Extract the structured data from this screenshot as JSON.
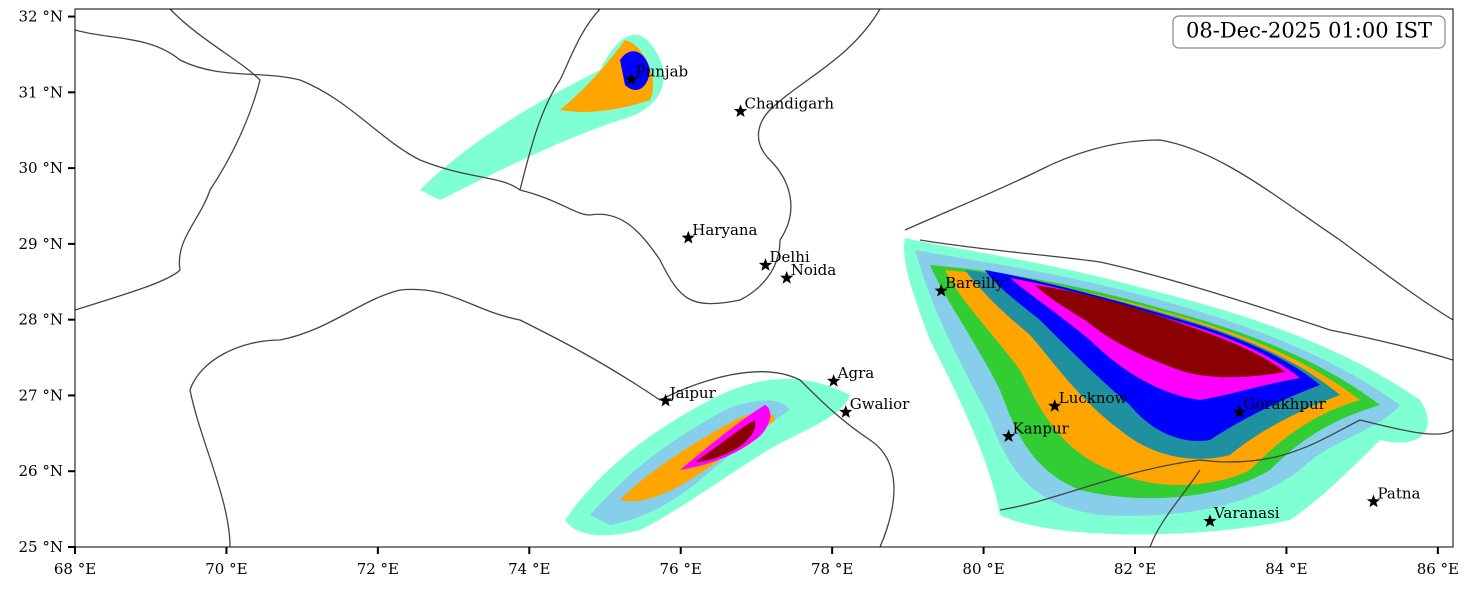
{
  "map": {
    "title": "08-Dec-2025 01:00 IST",
    "xlim": [
      68,
      86.2
    ],
    "ylim": [
      25,
      32.1
    ],
    "xticks": [
      {
        "value": 68,
        "label": "68 °E"
      },
      {
        "value": 70,
        "label": "70 °E"
      },
      {
        "value": 72,
        "label": "72 °E"
      },
      {
        "value": 74,
        "label": "74 °E"
      },
      {
        "value": 76,
        "label": "76 °E"
      },
      {
        "value": 78,
        "label": "78 °E"
      },
      {
        "value": 80,
        "label": "80 °E"
      },
      {
        "value": 82,
        "label": "82 °E"
      },
      {
        "value": 84,
        "label": "84 °E"
      },
      {
        "value": 86,
        "label": "86 °E"
      }
    ],
    "yticks": [
      {
        "value": 25,
        "label": "25 °N"
      },
      {
        "value": 26,
        "label": "26 °N"
      },
      {
        "value": 27,
        "label": "27 °N"
      },
      {
        "value": 28,
        "label": "28 °N"
      },
      {
        "value": 29,
        "label": "29 °N"
      },
      {
        "value": 30,
        "label": "30 °N"
      },
      {
        "value": 31,
        "label": "31 °N"
      },
      {
        "value": 32,
        "label": "32 °N"
      }
    ],
    "cities": [
      {
        "name": "Punjab",
        "lon": 75.35,
        "lat": 31.17
      },
      {
        "name": "Chandigarh",
        "lon": 76.79,
        "lat": 30.75
      },
      {
        "name": "Haryana",
        "lon": 76.1,
        "lat": 29.08
      },
      {
        "name": "Delhi",
        "lon": 77.12,
        "lat": 28.72
      },
      {
        "name": "Noida",
        "lon": 77.4,
        "lat": 28.55
      },
      {
        "name": "Bareilly",
        "lon": 79.44,
        "lat": 28.38
      },
      {
        "name": "Agra",
        "lon": 78.02,
        "lat": 27.19
      },
      {
        "name": "Jaipur",
        "lon": 75.8,
        "lat": 26.93
      },
      {
        "name": "Gwalior",
        "lon": 78.18,
        "lat": 26.78
      },
      {
        "name": "Lucknow",
        "lon": 80.94,
        "lat": 26.86
      },
      {
        "name": "Gorakhpur",
        "lon": 83.38,
        "lat": 26.78
      },
      {
        "name": "Kanpur",
        "lon": 80.33,
        "lat": 26.46
      },
      {
        "name": "Varanasi",
        "lon": 82.99,
        "lat": 25.34
      },
      {
        "name": "Patna",
        "lon": 85.15,
        "lat": 25.6
      }
    ]
  }
}
